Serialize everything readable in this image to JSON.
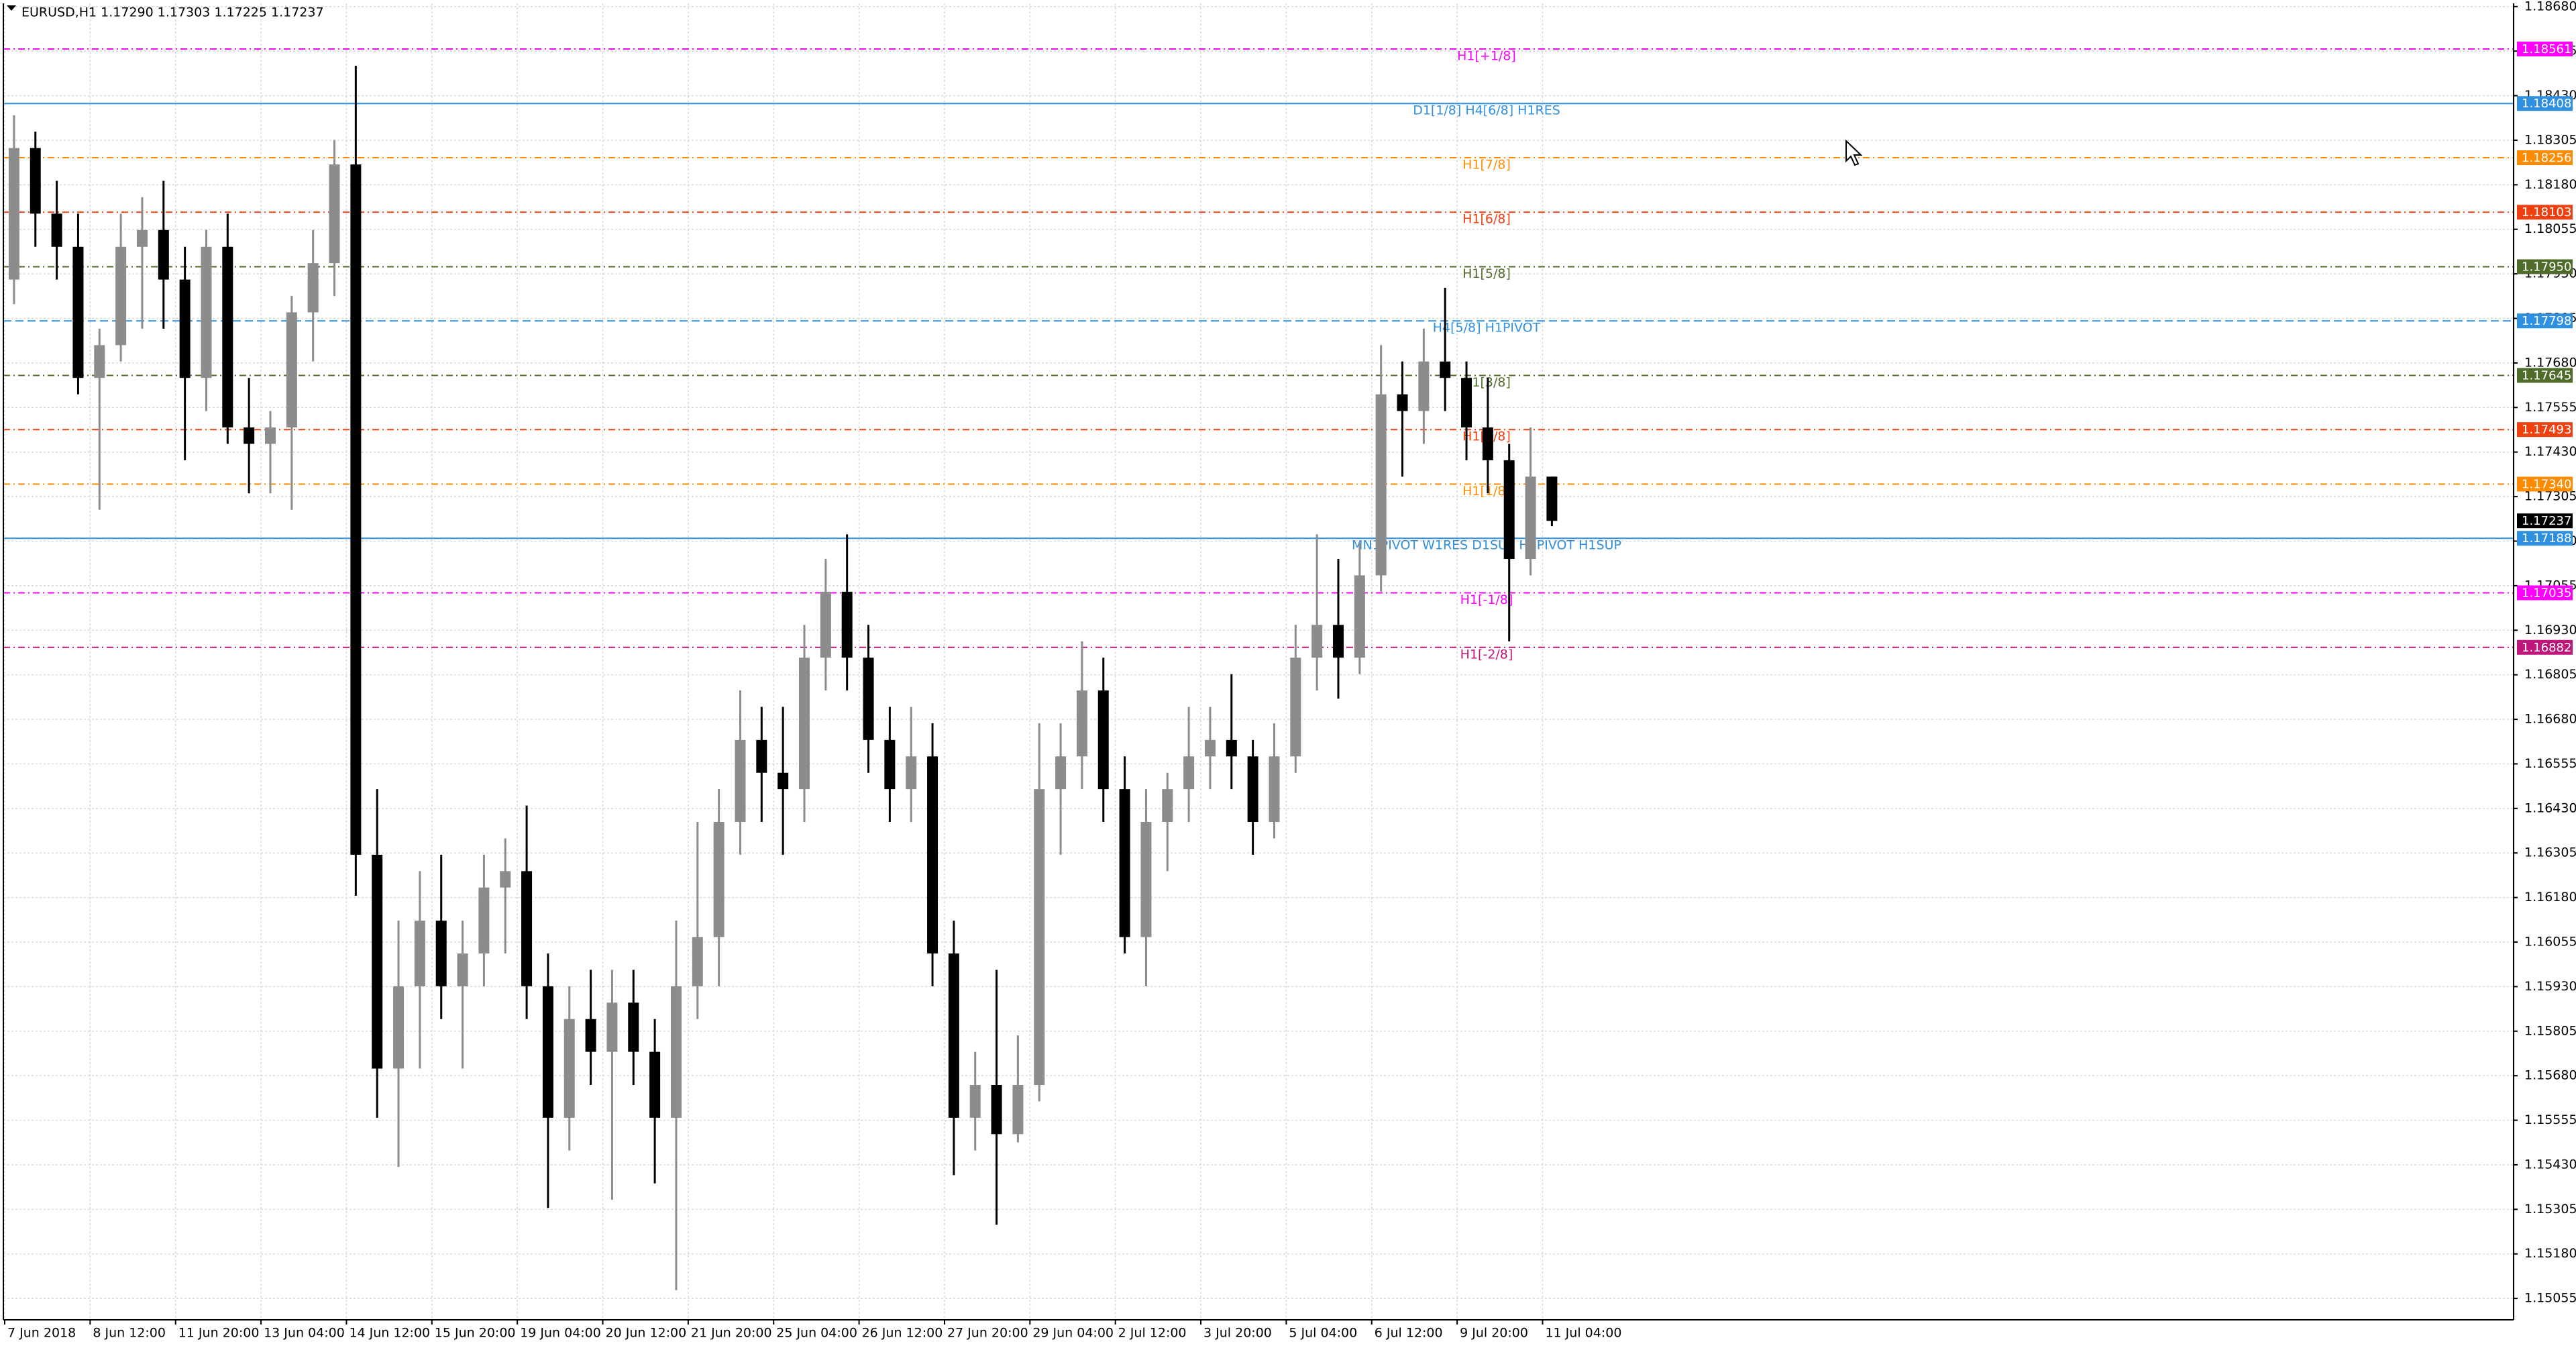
{
  "chart_data": {
    "type": "candlestick",
    "title": "EURUSD,H1  1.17290 1.17303 1.17225 1.17237",
    "categories": [
      "7 Jun 2018",
      null,
      null,
      null,
      "8 Jun 12:00",
      null,
      null,
      null,
      "11 Jun 20:00",
      null,
      null,
      null,
      "13 Jun 04:00",
      null,
      null,
      null,
      "14 Jun 12:00",
      null,
      null,
      null,
      "15 Jun 20:00",
      null,
      null,
      null,
      "19 Jun 04:00",
      null,
      null,
      null,
      "20 Jun 12:00",
      null,
      null,
      null,
      "21 Jun 20:00",
      null,
      null,
      null,
      "25 Jun 04:00",
      null,
      null,
      null,
      "26 Jun 12:00",
      null,
      null,
      null,
      "27 Jun 20:00",
      null,
      null,
      null,
      "29 Jun 04:00",
      null,
      null,
      null,
      "2 Jul 12:00",
      null,
      null,
      null,
      "3 Jul 20:00",
      null,
      null,
      null,
      "5 Jul 04:00",
      null,
      null,
      null,
      "6 Jul 12:00",
      null,
      null,
      null,
      "9 Jul 20:00",
      null,
      null,
      null,
      "11 Jul 04:00"
    ],
    "open": [
      1.17914,
      1.18283,
      1.18099,
      1.18006,
      1.17638,
      1.1773,
      1.18006,
      1.18053,
      1.17914,
      1.17638,
      1.18006,
      1.17499,
      1.17453,
      1.17499,
      1.17822,
      1.1796,
      1.18237,
      1.163,
      1.157,
      1.15931,
      1.16115,
      1.15931,
      1.16023,
      1.16208,
      1.16254,
      1.15931,
      1.15562,
      1.15839,
      1.15747,
      1.15885,
      1.15747,
      1.15562,
      1.15931,
      1.16069,
      1.16392,
      1.16622,
      1.1653,
      1.16484,
      1.16853,
      1.17038,
      1.16853,
      1.16622,
      1.16484,
      1.16576,
      1.16023,
      1.15562,
      1.15654,
      1.15516,
      1.15654,
      1.16484,
      1.16576,
      1.16761,
      1.16484,
      1.16069,
      1.16392,
      1.16484,
      1.16576,
      1.16622,
      1.16576,
      1.16392,
      1.16576,
      1.16853,
      1.16945,
      1.16853,
      1.17084,
      1.17592,
      1.17545,
      1.17684,
      1.17638,
      1.17499,
      1.17407,
      1.1713,
      1.17361
    ],
    "high": [
      1.18375,
      1.18329,
      1.18191,
      1.18099,
      1.17776,
      1.18099,
      1.18145,
      1.18191,
      1.18006,
      1.18053,
      1.18099,
      1.17638,
      1.17545,
      1.17868,
      1.18053,
      1.18306,
      1.18514,
      1.16484,
      1.16115,
      1.16254,
      1.163,
      1.16115,
      1.163,
      1.16346,
      1.16438,
      1.16023,
      1.15931,
      1.15977,
      1.15977,
      1.15977,
      1.15839,
      1.16115,
      1.16392,
      1.16484,
      1.16761,
      1.16715,
      1.16715,
      1.16945,
      1.1713,
      1.17199,
      1.16945,
      1.16715,
      1.16715,
      1.16669,
      1.16115,
      1.15747,
      1.15977,
      1.15793,
      1.16669,
      1.16669,
      1.16899,
      1.16853,
      1.16576,
      1.16484,
      1.1653,
      1.16715,
      1.16715,
      1.16807,
      1.16622,
      1.16669,
      1.16945,
      1.17199,
      1.1713,
      1.17176,
      1.1773,
      1.17684,
      1.17776,
      1.17891,
      1.17684,
      1.17638,
      1.17453,
      1.17499,
      1.17361
    ],
    "low": [
      1.17845,
      1.18006,
      1.17914,
      1.17592,
      1.17268,
      1.17684,
      1.17776,
      1.17776,
      1.17407,
      1.17545,
      1.17453,
      1.17314,
      1.17314,
      1.17268,
      1.17684,
      1.17868,
      1.16185,
      1.15562,
      1.15424,
      1.157,
      1.15839,
      1.157,
      1.15931,
      1.16023,
      1.15839,
      1.15309,
      1.1547,
      1.15654,
      1.15332,
      1.15654,
      1.15378,
      1.15078,
      1.15839,
      1.15931,
      1.163,
      1.16392,
      1.163,
      1.16392,
      1.16761,
      1.16761,
      1.1653,
      1.16392,
      1.16392,
      1.15931,
      1.15401,
      1.1547,
      1.15262,
      1.15493,
      1.15608,
      1.163,
      1.16484,
      1.16392,
      1.16023,
      1.15931,
      1.16254,
      1.16392,
      1.16484,
      1.16484,
      1.163,
      1.16346,
      1.1653,
      1.16761,
      1.16738,
      1.16807,
      1.17038,
      1.17361,
      1.17453,
      1.17545,
      1.17407,
      1.17314,
      1.16899,
      1.17084,
      1.17222
    ],
    "close": [
      1.18283,
      1.18099,
      1.18006,
      1.17638,
      1.1773,
      1.18006,
      1.18053,
      1.17914,
      1.17638,
      1.18006,
      1.17499,
      1.17453,
      1.17499,
      1.17822,
      1.1796,
      1.18237,
      1.163,
      1.157,
      1.15931,
      1.16115,
      1.15931,
      1.16023,
      1.16208,
      1.16254,
      1.15931,
      1.15562,
      1.15839,
      1.15747,
      1.15885,
      1.15747,
      1.15562,
      1.15931,
      1.16069,
      1.16392,
      1.16622,
      1.1653,
      1.16484,
      1.16853,
      1.17038,
      1.16853,
      1.16622,
      1.16484,
      1.16576,
      1.16023,
      1.15562,
      1.15654,
      1.15516,
      1.15654,
      1.16484,
      1.16576,
      1.16761,
      1.16484,
      1.16069,
      1.16392,
      1.16484,
      1.16576,
      1.16622,
      1.16576,
      1.16392,
      1.16576,
      1.16853,
      1.16945,
      1.16853,
      1.17084,
      1.17592,
      1.17545,
      1.17684,
      1.17638,
      1.17499,
      1.17407,
      1.1713,
      1.17361,
      1.17237
    ],
    "up_color": "#8c8c8c",
    "down_color": "#000000",
    "ylim": [
      1.14995,
      1.18689
    ],
    "yticks": [
      {
        "value": 1.1868,
        "label": "1.18680"
      },
      1.18555,
      {
        "value": 1.1843,
        "label": "1.18430"
      },
      1.18305,
      {
        "value": 1.1818,
        "label": "1.18180"
      },
      1.18055,
      {
        "value": 1.1793,
        "label": "1.17930"
      },
      1.17805,
      {
        "value": 1.1768,
        "label": "1.17680"
      },
      1.17555,
      {
        "value": 1.1743,
        "label": "1.17430"
      },
      1.17305,
      {
        "value": 1.1718,
        "label": "1.17180"
      },
      1.17055,
      {
        "value": 1.1693,
        "label": "1.16930"
      },
      1.16805,
      {
        "value": 1.1668,
        "label": "1.16680"
      },
      1.16555,
      {
        "value": 1.1643,
        "label": "1.16430"
      },
      1.16305,
      {
        "value": 1.1618,
        "label": "1.16180"
      },
      1.16055,
      {
        "value": 1.1593,
        "label": "1.15930"
      },
      1.15805,
      {
        "value": 1.1568,
        "label": "1.15680"
      },
      1.15555,
      {
        "value": 1.1543,
        "label": "1.15430"
      },
      1.15305,
      {
        "value": 1.1518,
        "label": "1.15180"
      },
      1.15055
    ],
    "grid": true,
    "levels": [
      {
        "price": 1.18561,
        "label": "H1[+1/8]",
        "color": "#ff00ff",
        "style": "dashdot"
      },
      {
        "price": 1.18408,
        "label": "D1[1/8] H4[6/8] H1RES",
        "color": "#2f8fe0",
        "style": "solid"
      },
      {
        "price": 1.18256,
        "label": "H1[7/8]",
        "color": "#ff8c00",
        "style": "dashdot"
      },
      {
        "price": 1.18103,
        "label": "H1[6/8]",
        "color": "#f04010",
        "style": "dashdot"
      },
      {
        "price": 1.1795,
        "tag": "1.17950",
        "label": "H1[5/8]",
        "color": "#4f6b2a",
        "style": "dashdot"
      },
      {
        "price": 1.17798,
        "label": "H4[5/8] H1PIVOT",
        "color": "#2f8fe0",
        "style": "dashed"
      },
      {
        "price": 1.17645,
        "label": "H1[3/8]",
        "color": "#4f6b2a",
        "style": "dashdot"
      },
      {
        "price": 1.17493,
        "label": "H1[2/8]",
        "color": "#f04010",
        "style": "dashdot"
      },
      {
        "price": 1.1734,
        "tag": "1.17340",
        "label": "H1[1/8]",
        "color": "#ff8c00",
        "style": "dashdot"
      },
      {
        "price": 1.17188,
        "label": "MN1PIVOT W1RES D1SUP H4PIVOT H1SUP",
        "color": "#2f8fe0",
        "style": "solid"
      },
      {
        "price": 1.17035,
        "label": "H1[-1/8]",
        "color": "#ff00ff",
        "style": "dashdot"
      },
      {
        "price": 1.16882,
        "label": "H1[-2/8]",
        "color": "#c0157a",
        "style": "dashdot"
      }
    ],
    "current_price": 1.17237
  }
}
